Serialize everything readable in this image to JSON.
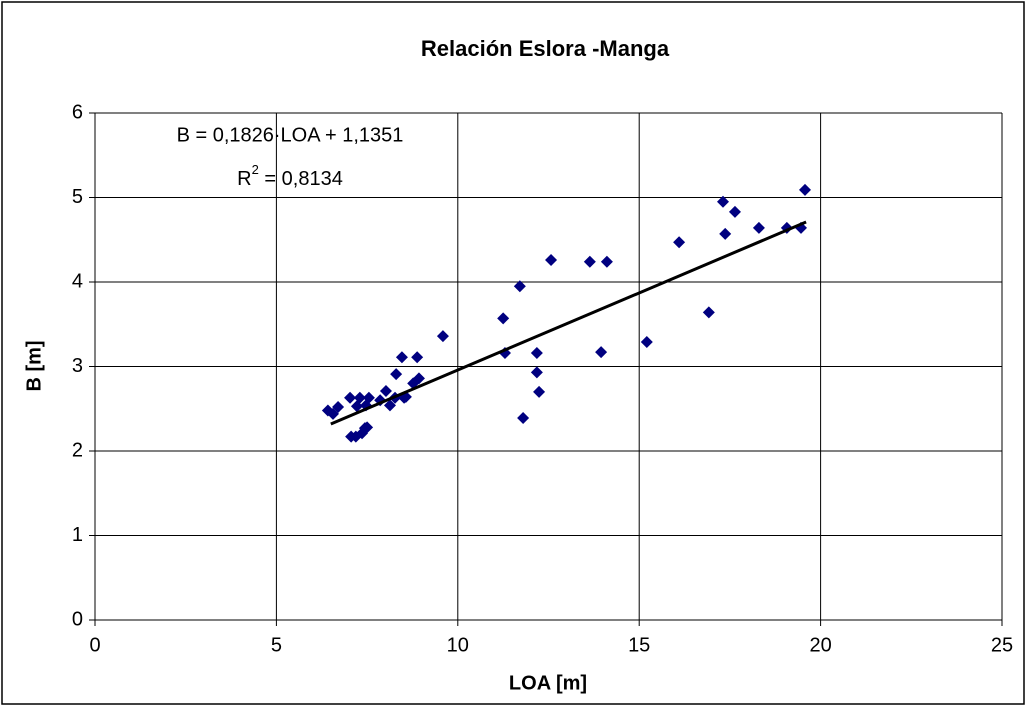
{
  "chart_data": {
    "type": "scatter",
    "title": "Relación Eslora -Manga",
    "xlabel": "LOA [m]",
    "ylabel": "B [m]",
    "equation": "B = 0,1826·LOA + 1,1351",
    "r_squared": {
      "base": "R",
      "sup": "2",
      "rest": " = 0,8134"
    },
    "xlim": [
      0,
      25
    ],
    "xticks": [
      0,
      5,
      10,
      15,
      20,
      25
    ],
    "ylim": [
      0,
      6
    ],
    "yticks": [
      0,
      1,
      2,
      3,
      4,
      5,
      6
    ],
    "grid": true,
    "series": [
      {
        "color": "#000080",
        "x": [
          6.42,
          6.56,
          6.7,
          7.03,
          7.06,
          7.19,
          7.22,
          7.3,
          7.36,
          7.44,
          7.5,
          7.47,
          7.55,
          7.86,
          8.02,
          8.13,
          8.27,
          8.3,
          8.46,
          8.52,
          8.57,
          8.77,
          8.88,
          8.93,
          9.59,
          11.25,
          11.3,
          11.71,
          11.8,
          12.18,
          12.18,
          12.24,
          12.57,
          13.64,
          13.95,
          14.11,
          15.21,
          16.1,
          16.92,
          17.31,
          17.37,
          17.64,
          18.3,
          19.07,
          19.46,
          19.57
        ],
        "values": [
          2.48,
          2.44,
          2.52,
          2.63,
          2.17,
          2.17,
          2.53,
          2.63,
          2.21,
          2.27,
          2.28,
          2.54,
          2.63,
          2.6,
          2.71,
          2.54,
          2.63,
          2.91,
          3.11,
          2.63,
          2.64,
          2.8,
          3.11,
          2.86,
          3.36,
          3.57,
          3.16,
          3.95,
          2.39,
          3.16,
          2.93,
          2.7,
          4.26,
          4.24,
          3.17,
          4.24,
          3.29,
          4.47,
          3.64,
          4.95,
          4.57,
          4.83,
          4.64,
          4.64,
          4.64,
          5.09
        ]
      }
    ],
    "trendline": {
      "color": "#000000",
      "x": [
        6.5,
        19.6
      ],
      "values": [
        2.32,
        4.71
      ]
    }
  }
}
